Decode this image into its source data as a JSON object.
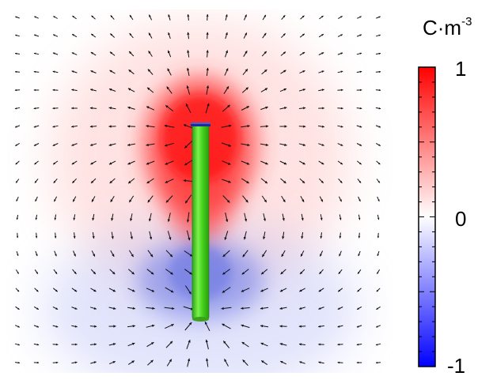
{
  "colorbar": {
    "unit_base": "C·m",
    "unit_exponent": "-3",
    "tick_labels": {
      "max": "1",
      "mid": "0",
      "min": "-1"
    },
    "range": [
      -1,
      1
    ],
    "colors": {
      "max": "#ff0000",
      "mid": "#ffffff",
      "min": "#0000ff"
    }
  },
  "plot": {
    "positive_color": "#ff1a1a",
    "negative_color": "#3344ee",
    "rod_color": "#3fd61e",
    "rod_cap_color": "#2233aa",
    "arrow_color": "#111111"
  }
}
